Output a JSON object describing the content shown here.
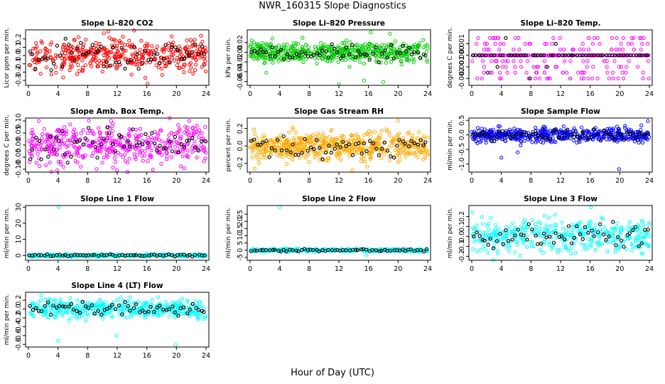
{
  "figure": {
    "title": "NWR_160315  Slope Diagnostics",
    "xlabel": "Hour of Day (UTC)"
  },
  "chart_data": [
    {
      "type": "scatter",
      "title": "Slope Li–820 CO2",
      "ylabel": "Licor ppm per min.",
      "color": "#ff0000",
      "ylim": [
        -0.36,
        0.31
      ],
      "yticks": [
        -0.3,
        -0.2,
        -0.1,
        0.0,
        0.1,
        0.2
      ],
      "ytick_labels": [
        "-0.3",
        "-0.2",
        "-0.1",
        "0.0",
        "0.1",
        "0.2"
      ],
      "spread": 0.1,
      "outliers": [
        [
          10.2,
          0.27
        ],
        [
          10.8,
          0.29
        ],
        [
          15.8,
          -0.27
        ],
        [
          16.1,
          -0.34
        ]
      ],
      "n": 420,
      "seed": 11
    },
    {
      "type": "scatter",
      "title": "Slope Li–820 Pressure",
      "ylabel": "kPa per min.",
      "color": "#00cc00",
      "ylim": [
        -0.068,
        0.046
      ],
      "yticks": [
        -0.06,
        -0.04,
        -0.02,
        0.0,
        0.02
      ],
      "ytick_labels": [
        "-0.06",
        "-0.04",
        "-0.02",
        "0.00",
        "0.02"
      ],
      "spread": 0.01,
      "outliers": [
        [
          2.2,
          -0.042
        ],
        [
          12.0,
          -0.066
        ],
        [
          15.4,
          -0.058
        ],
        [
          16.3,
          0.041
        ],
        [
          18.0,
          -0.061
        ],
        [
          18.9,
          0.038
        ]
      ],
      "n": 520,
      "seed": 23
    },
    {
      "type": "scatter",
      "title": "Slope Li–820 Temp.",
      "ylabel": "degrees C per min.",
      "color": "#ff00ff",
      "ylim": [
        -0.0026,
        0.0022
      ],
      "yticks": [
        -0.002,
        -0.001,
        0.0,
        0.001
      ],
      "ytick_labels": [
        "-0.002",
        "-0.001",
        "0.000",
        "0.001"
      ],
      "levels": [
        -0.002,
        -0.0015,
        -0.001,
        -0.0005,
        0,
        0.0005,
        0.001,
        0.0015
      ],
      "n": 360,
      "seed": 37
    },
    {
      "type": "scatter",
      "title": "Slope Amb. Box Temp.",
      "ylabel": "degrees C per min.",
      "color": "#ff00ff",
      "ylim": [
        -0.112,
        0.112
      ],
      "yticks": [
        -0.1,
        -0.05,
        0.0,
        0.05,
        0.1
      ],
      "ytick_labels": [
        "-0.10",
        "-0.05",
        "0.00",
        "0.05",
        "0.10"
      ],
      "spread": 0.04,
      "outliers": [
        [
          1.4,
          0.1
        ],
        [
          3.1,
          -0.11
        ],
        [
          9.2,
          -0.1
        ]
      ],
      "n": 440,
      "seed": 41
    },
    {
      "type": "scatter",
      "title": "Slope Gas Stream RH",
      "ylabel": "percent per min.",
      "color": "#ffaa00",
      "ylim": [
        -0.3,
        0.32
      ],
      "yticks": [
        -0.2,
        0.0,
        0.2
      ],
      "ytick_labels": [
        "-0.2",
        "0.0",
        "0.2"
      ],
      "spread": 0.08,
      "outliers": [
        [
          20.0,
          0.29
        ],
        [
          0.6,
          -0.26
        ],
        [
          13.8,
          -0.28
        ]
      ],
      "n": 560,
      "seed": 53
    },
    {
      "type": "scatter",
      "title": "Slope Sample Flow",
      "ylabel": "ml/min per min.",
      "color": "#0000ff",
      "ylim": [
        -1.28,
        0.58
      ],
      "yticks": [
        -1.0,
        -0.5,
        0.0,
        0.5
      ],
      "ytick_labels": [
        "-1.0",
        "-0.5",
        "0.0",
        "0.5"
      ],
      "spread": 0.12,
      "outliers": [
        [
          19.9,
          -1.18
        ],
        [
          23.8,
          0.48
        ],
        [
          4.0,
          -0.78
        ],
        [
          6.2,
          -0.6
        ]
      ],
      "n": 480,
      "seed": 67
    },
    {
      "type": "scatter",
      "title": "Slope Line 1 Flow",
      "ylabel": "ml/min per min.",
      "color": "#00ffff",
      "ylim": [
        -3,
        31
      ],
      "yticks": [
        0,
        10,
        20,
        30
      ],
      "ytick_labels": [
        "0",
        "10",
        "20",
        "30"
      ],
      "spread": 0.4,
      "outliers": [
        [
          4.1,
          30.0
        ]
      ],
      "n": 300,
      "seed": 71
    },
    {
      "type": "scatter",
      "title": "Slope Line 2 Flow",
      "ylabel": "ml/min per min.",
      "color": "#00ffff",
      "ylim": [
        -7,
        31
      ],
      "yticks": [
        -5,
        0,
        5,
        10,
        15,
        20,
        25
      ],
      "ytick_labels": [
        "-5",
        "0",
        "5",
        "10",
        "15",
        "20",
        "25"
      ],
      "spread": 0.5,
      "outliers": [
        [
          4.0,
          30.0
        ],
        [
          15.7,
          -3.4
        ]
      ],
      "n": 300,
      "seed": 83
    },
    {
      "type": "scatter",
      "title": "Slope Line 3 Flow",
      "ylabel": "ml/min per min.",
      "color": "#00ffff",
      "ylim": [
        -0.24,
        0.31
      ],
      "yticks": [
        -0.2,
        -0.1,
        0.0,
        0.1,
        0.2
      ],
      "ytick_labels": [
        "-0.2",
        "-0.1",
        "0.0",
        "0.1",
        "0.2"
      ],
      "spread": 0.08,
      "outliers": [
        [
          16.1,
          0.29
        ],
        [
          0.1,
          0.24
        ]
      ],
      "n": 380,
      "seed": 97
    },
    {
      "type": "scatter",
      "title": "Slope Line 4 (LT) Flow",
      "ylabel": "ml/min per min.",
      "color": "#00ffff",
      "ylim": [
        -0.86,
        0.38
      ],
      "yticks": [
        -0.8,
        -0.6,
        -0.4,
        -0.2,
        0.0,
        0.2
      ],
      "ytick_labels": [
        "-0.8",
        "-0.6",
        "-0.4",
        "-0.2",
        "0.0",
        "0.2"
      ],
      "spread": 0.1,
      "outliers": [
        [
          4.0,
          -0.72
        ],
        [
          11.9,
          -0.6
        ],
        [
          19.9,
          -0.82
        ]
      ],
      "n": 420,
      "seed": 103
    }
  ],
  "x_axis": {
    "xlim": [
      0,
      24
    ],
    "xticks": [
      0,
      4,
      8,
      12,
      16,
      20,
      24
    ],
    "xtick_labels": [
      "0",
      "4",
      "8",
      "12",
      "16",
      "20",
      "24"
    ]
  },
  "overlay_color": "#000000"
}
